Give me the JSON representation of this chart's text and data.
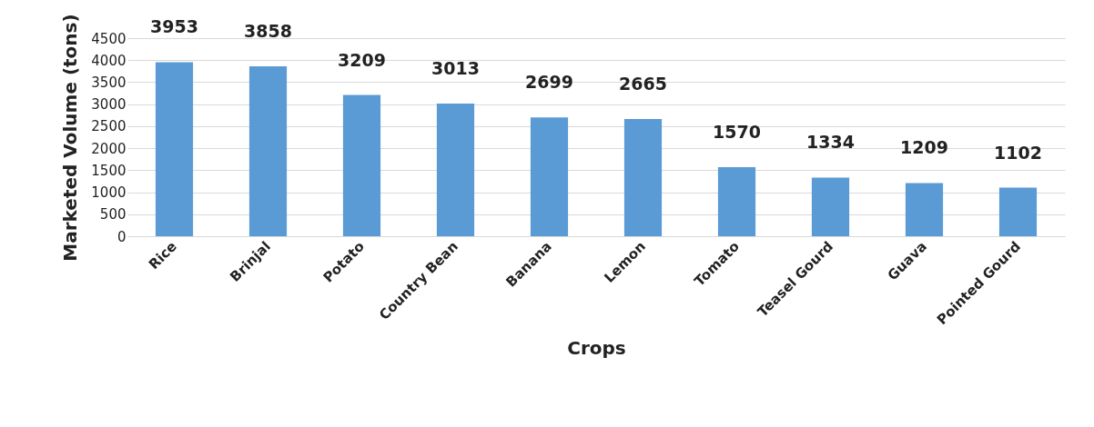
{
  "chart_data": {
    "type": "bar",
    "xlabel": "Crops",
    "ylabel": "Marketed Volume (tons)",
    "categories": [
      "Rice",
      "Brinjal",
      "Potato",
      "Country Bean",
      "Banana",
      "Lemon",
      "Tomato",
      "Teasel Gourd",
      "Guava",
      "Pointed Gourd"
    ],
    "values": [
      3953,
      3858,
      3209,
      3013,
      2699,
      2665,
      1570,
      1334,
      1209,
      1102
    ],
    "color": "#5b9bd5",
    "ylim": [
      0,
      4500
    ],
    "yticks": [
      0,
      500,
      1000,
      1500,
      2000,
      2500,
      3000,
      3500,
      4000,
      4500
    ],
    "grid": "y",
    "data_labels": true
  }
}
